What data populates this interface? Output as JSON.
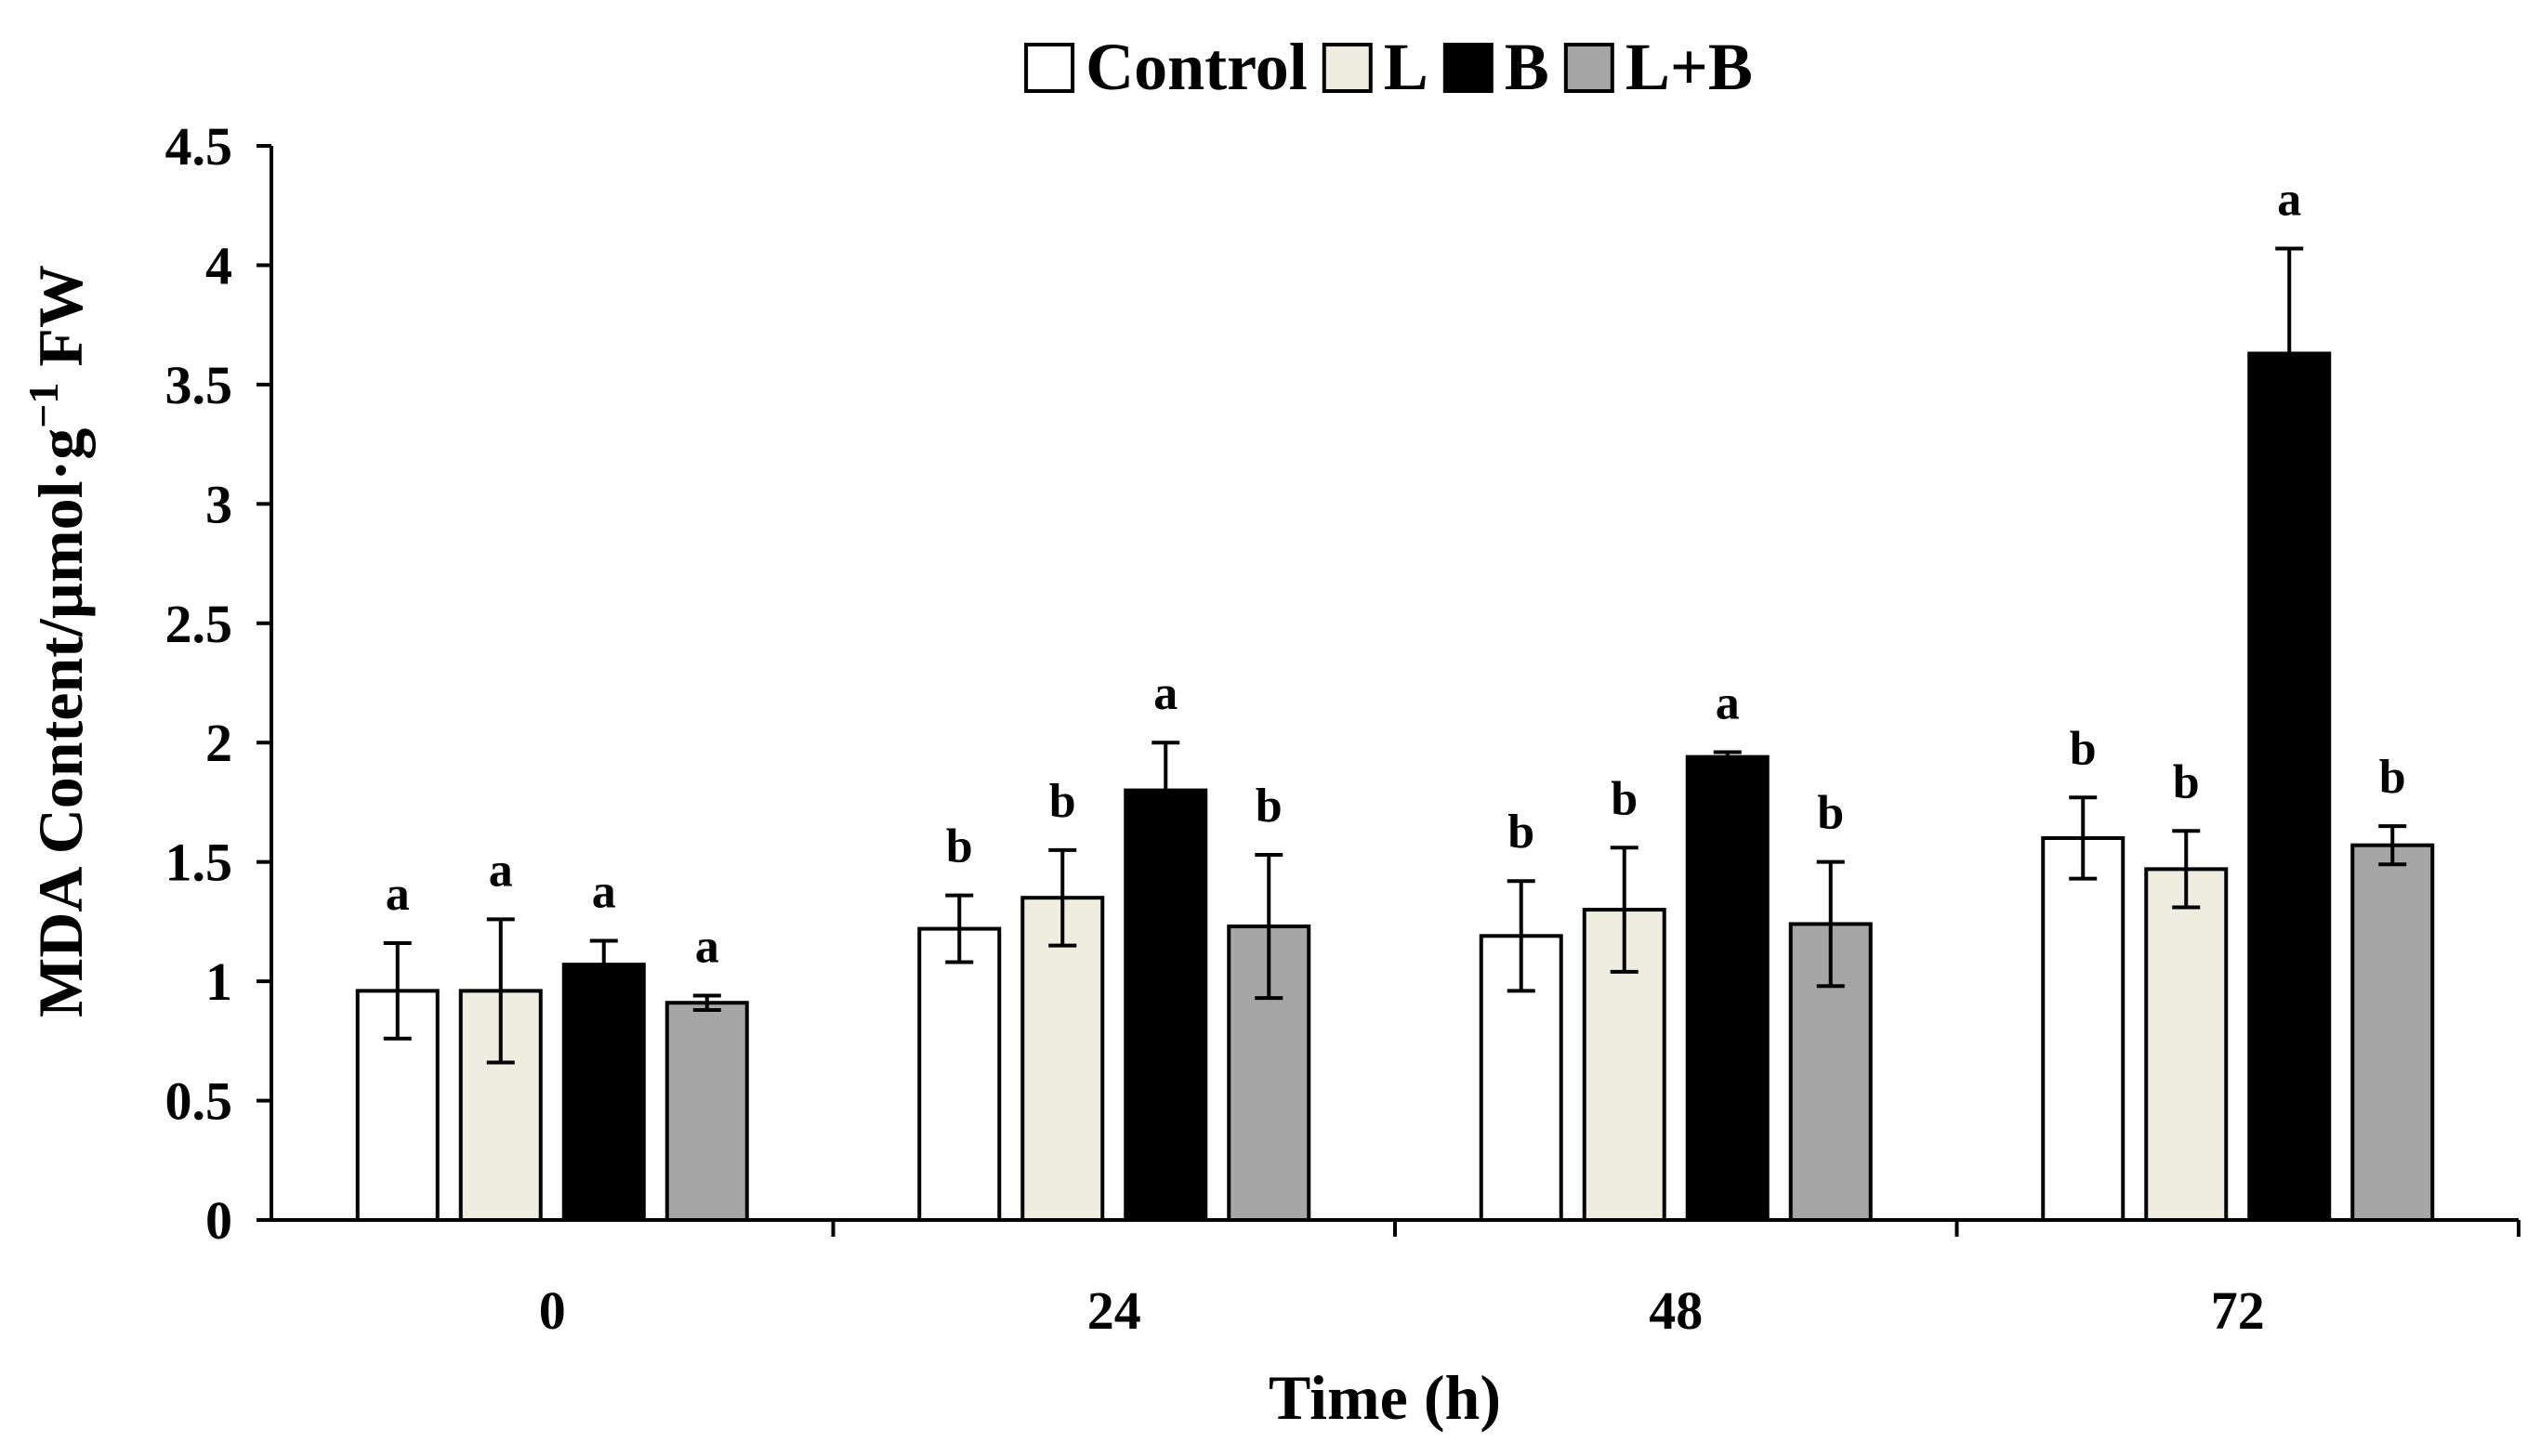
{
  "chart_data": {
    "type": "bar",
    "title": "",
    "xlabel": "Time (h)",
    "ylabel_main": "MDA Content/µmol·g",
    "ylabel_sup": "−1",
    "ylabel_tail": " FW",
    "categories": [
      "0",
      "24",
      "48",
      "72"
    ],
    "ylim": [
      0,
      4.5
    ],
    "yticks": [
      0,
      0.5,
      1,
      1.5,
      2,
      2.5,
      3,
      3.5,
      4,
      4.5
    ],
    "ytick_labels": [
      "0",
      "0.5",
      "1",
      "1.5",
      "2",
      "2.5",
      "3",
      "3.5",
      "4",
      "4.5"
    ],
    "legend_position": "top-center",
    "grid": false,
    "series": [
      {
        "name": "Control",
        "color": "#ffffff",
        "values": [
          0.96,
          1.22,
          1.19,
          1.6
        ],
        "errors": [
          0.2,
          0.14,
          0.23,
          0.17
        ],
        "letters": [
          "a",
          "b",
          "b",
          "b"
        ]
      },
      {
        "name": "L",
        "color": "#eeede0",
        "values": [
          0.96,
          1.35,
          1.3,
          1.47
        ],
        "errors": [
          0.3,
          0.2,
          0.26,
          0.16
        ],
        "letters": [
          "a",
          "b",
          "b",
          "b"
        ]
      },
      {
        "name": "B",
        "color": "#000000",
        "values": [
          1.07,
          1.8,
          1.94,
          3.63
        ],
        "errors": [
          0.1,
          0.2,
          0.02,
          0.44
        ],
        "letters": [
          "a",
          "a",
          "a",
          "a"
        ]
      },
      {
        "name": "L+B",
        "color": "#a6a6a6",
        "values": [
          0.91,
          1.23,
          1.24,
          1.57
        ],
        "errors": [
          0.03,
          0.3,
          0.26,
          0.08
        ],
        "letters": [
          "a",
          "b",
          "b",
          "b"
        ]
      }
    ]
  }
}
